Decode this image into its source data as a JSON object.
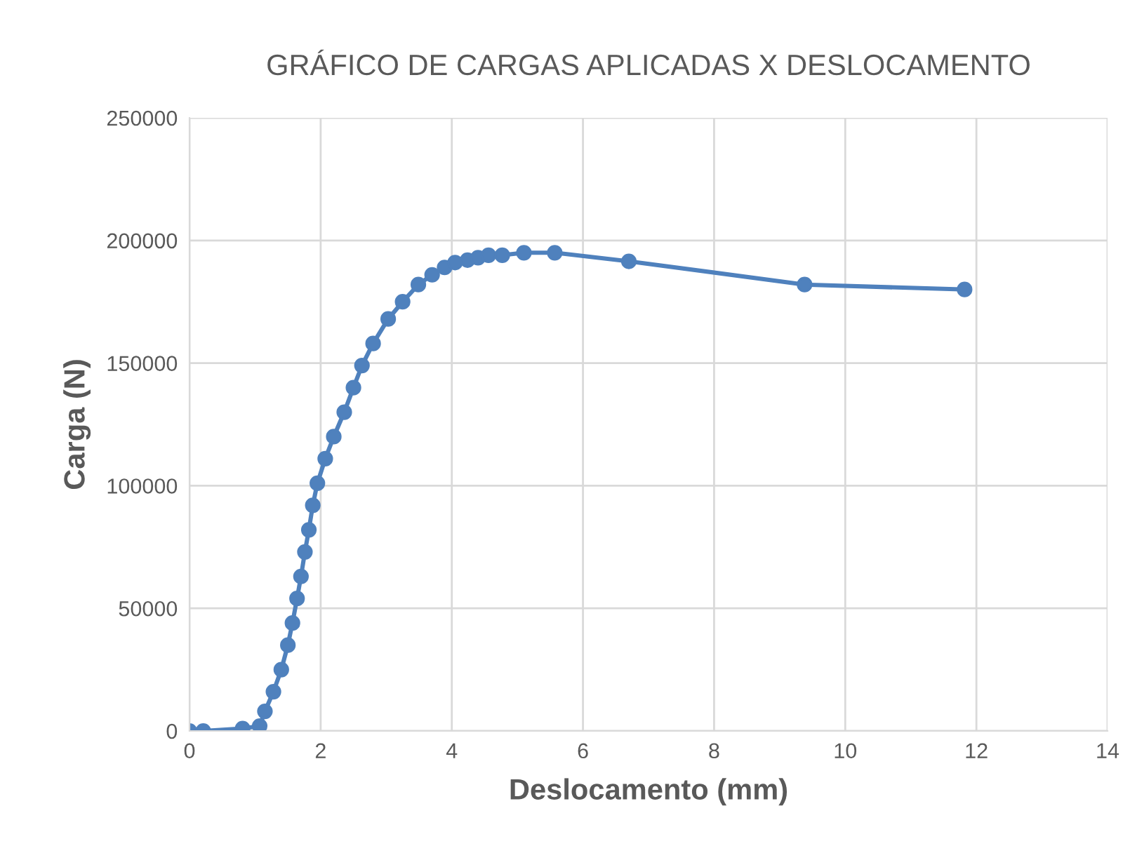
{
  "chart_data": {
    "type": "line",
    "title": "GRÁFICO DE CARGAS APLICADAS X DESLOCAMENTO",
    "xlabel": "Deslocamento (mm)",
    "ylabel": "Carga (N)",
    "series": [
      {
        "color": "#4f81bd",
        "x": [
          0,
          0.21,
          0.81,
          1.07,
          1.15,
          1.28,
          1.4,
          1.5,
          1.57,
          1.64,
          1.7,
          1.76,
          1.82,
          1.88,
          1.95,
          2.07,
          2.2,
          2.36,
          2.5,
          2.63,
          2.8,
          3.03,
          3.25,
          3.49,
          3.7,
          3.89,
          4.05,
          4.24,
          4.4,
          4.56,
          4.77,
          5.1,
          5.57,
          6.7,
          9.38,
          11.82
        ],
        "values": [
          0,
          0,
          1000,
          2000,
          8000,
          16000,
          25000,
          35000,
          44000,
          54000,
          63000,
          73000,
          82000,
          92000,
          101000,
          111000,
          120000,
          130000,
          140000,
          149000,
          158000,
          168000,
          175000,
          182000,
          186000,
          189000,
          191000,
          192000,
          193000,
          194000,
          194000,
          195000,
          195000,
          191500,
          182000,
          180000
        ]
      }
    ],
    "xlim": [
      0,
      14
    ],
    "xticks": [
      0,
      2,
      4,
      6,
      8,
      10,
      12,
      14
    ],
    "ylim": [
      0,
      250000
    ],
    "yticks": [
      0,
      50000,
      100000,
      150000,
      200000,
      250000
    ],
    "grid": true,
    "marker": "circle",
    "line_style": "solid"
  }
}
